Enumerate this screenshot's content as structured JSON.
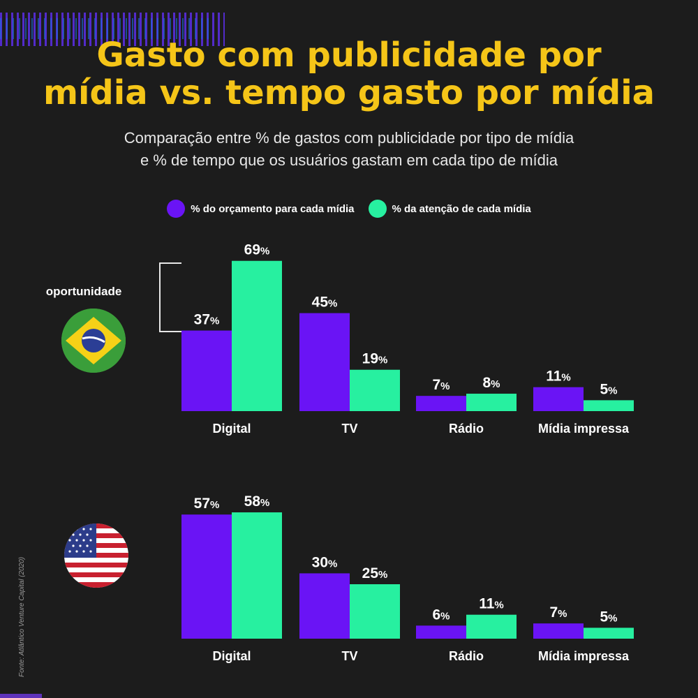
{
  "title": {
    "line1": "Gasto com publicidade por",
    "line2": "mídia vs. tempo gasto por mídia"
  },
  "subtitle": {
    "line1": "Comparação entre % de gastos com publicidade por tipo de mídia",
    "line2": "e % de tempo que os usuários gastam em cada tipo de mídia"
  },
  "annotation": "oportunidade",
  "source": "Fonte: Atlântico Venture Capital (2020)",
  "colors": {
    "budget": "#6a14f5",
    "attention": "#27f0a0",
    "title": "#f5c518"
  },
  "flags": [
    "brazil-flag",
    "usa-flag"
  ],
  "chart_data": [
    {
      "type": "bar",
      "categories": [
        "Digital",
        "TV",
        "Rádio",
        "Mídia impressa"
      ],
      "series": [
        {
          "name": "% do orçamento para cada mídia",
          "values": [
            37,
            45,
            7,
            11
          ]
        },
        {
          "name": "% da atenção de cada mídia",
          "values": [
            69,
            19,
            8,
            5
          ]
        }
      ],
      "legend": "top-center",
      "grid": false
    },
    {
      "type": "bar",
      "categories": [
        "Digital",
        "TV",
        "Rádio",
        "Mídia impressa"
      ],
      "series": [
        {
          "name": "% do orçamento para cada mídia",
          "values": [
            57,
            30,
            6,
            7
          ]
        },
        {
          "name": "% da atenção de cada mídia",
          "values": [
            58,
            25,
            11,
            5
          ]
        }
      ],
      "grid": false
    }
  ]
}
